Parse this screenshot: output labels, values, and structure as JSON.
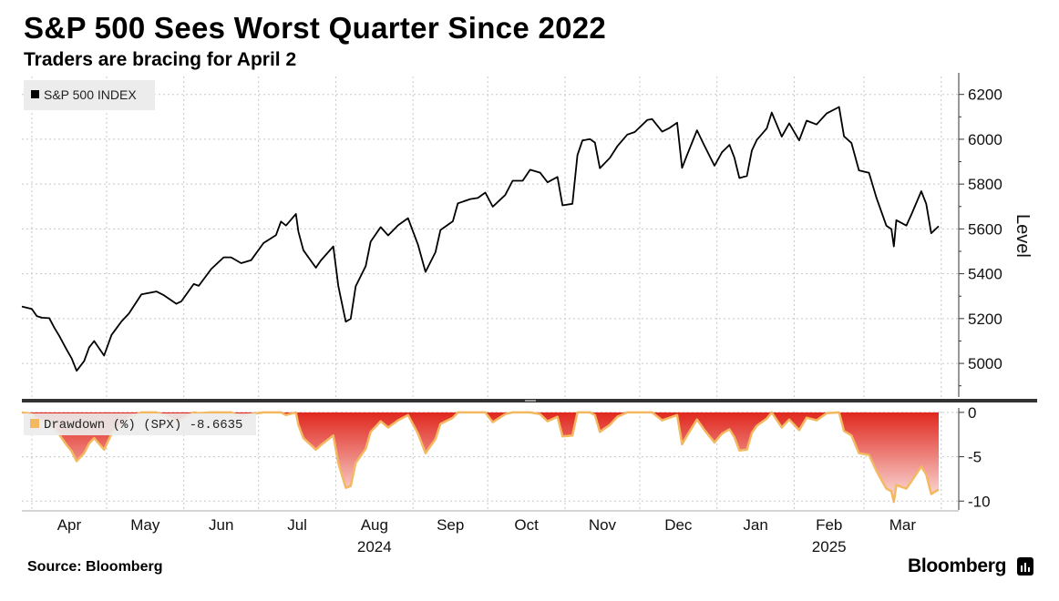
{
  "title": "S&P 500 Sees Worst Quarter Since 2022",
  "subtitle": "Traders are bracing for April 2",
  "source": "Source: Bloomberg",
  "brand": "Bloomberg",
  "colors": {
    "line": "#000000",
    "drawdown_fill_top": "#e0281e",
    "drawdown_fill_bottom": "#fbe3e1",
    "drawdown_line": "#f4b860",
    "grid": "#c8c8c8"
  },
  "chart_data": [
    {
      "type": "line",
      "legend": "S&P 500 INDEX",
      "ylabel": "Level",
      "ylim": [
        4850,
        6280
      ],
      "yticks": [
        5000,
        5200,
        5400,
        5600,
        5800,
        6000,
        6200
      ],
      "x_month_labels": [
        "Apr",
        "May",
        "Jun",
        "Jul",
        "Aug",
        "Sep",
        "Oct",
        "Nov",
        "Dec",
        "Jan",
        "Feb",
        "Mar"
      ],
      "x_year_labels": [
        {
          "month": "Aug",
          "year": "2024"
        },
        {
          "month": "Feb",
          "year": "2025"
        }
      ],
      "x_start": "2024-03-28",
      "x_end": "2025-03-31",
      "series": [
        {
          "name": "S&P 500 INDEX",
          "points": [
            [
              "2024-03-28",
              5254
            ],
            [
              "2024-04-01",
              5243
            ],
            [
              "2024-04-03",
              5211
            ],
            [
              "2024-04-05",
              5204
            ],
            [
              "2024-04-08",
              5202
            ],
            [
              "2024-04-10",
              5160
            ],
            [
              "2024-04-12",
              5123
            ],
            [
              "2024-04-15",
              5061
            ],
            [
              "2024-04-17",
              5022
            ],
            [
              "2024-04-19",
              4967
            ],
            [
              "2024-04-22",
              5010
            ],
            [
              "2024-04-24",
              5071
            ],
            [
              "2024-04-26",
              5100
            ],
            [
              "2024-04-30",
              5035
            ],
            [
              "2024-05-03",
              5127
            ],
            [
              "2024-05-07",
              5187
            ],
            [
              "2024-05-10",
              5223
            ],
            [
              "2024-05-15",
              5308
            ],
            [
              "2024-05-21",
              5321
            ],
            [
              "2024-05-24",
              5304
            ],
            [
              "2024-05-29",
              5266
            ],
            [
              "2024-05-31",
              5277
            ],
            [
              "2024-06-05",
              5354
            ],
            [
              "2024-06-07",
              5346
            ],
            [
              "2024-06-12",
              5421
            ],
            [
              "2024-06-17",
              5473
            ],
            [
              "2024-06-20",
              5473
            ],
            [
              "2024-06-24",
              5447
            ],
            [
              "2024-06-28",
              5460
            ],
            [
              "2024-07-03",
              5537
            ],
            [
              "2024-07-08",
              5572
            ],
            [
              "2024-07-10",
              5633
            ],
            [
              "2024-07-12",
              5615
            ],
            [
              "2024-07-16",
              5667
            ],
            [
              "2024-07-17",
              5588
            ],
            [
              "2024-07-19",
              5505
            ],
            [
              "2024-07-24",
              5427
            ],
            [
              "2024-07-26",
              5459
            ],
            [
              "2024-07-31",
              5522
            ],
            [
              "2024-08-02",
              5346
            ],
            [
              "2024-08-05",
              5186
            ],
            [
              "2024-08-07",
              5199
            ],
            [
              "2024-08-09",
              5344
            ],
            [
              "2024-08-13",
              5434
            ],
            [
              "2024-08-15",
              5543
            ],
            [
              "2024-08-19",
              5608
            ],
            [
              "2024-08-22",
              5571
            ],
            [
              "2024-08-26",
              5616
            ],
            [
              "2024-08-30",
              5648
            ],
            [
              "2024-09-03",
              5529
            ],
            [
              "2024-09-06",
              5408
            ],
            [
              "2024-09-10",
              5496
            ],
            [
              "2024-09-12",
              5595
            ],
            [
              "2024-09-17",
              5634
            ],
            [
              "2024-09-19",
              5714
            ],
            [
              "2024-09-24",
              5733
            ],
            [
              "2024-09-27",
              5738
            ],
            [
              "2024-09-30",
              5762
            ],
            [
              "2024-10-03",
              5699
            ],
            [
              "2024-10-08",
              5751
            ],
            [
              "2024-10-11",
              5815
            ],
            [
              "2024-10-15",
              5815
            ],
            [
              "2024-10-18",
              5864
            ],
            [
              "2024-10-22",
              5851
            ],
            [
              "2024-10-25",
              5808
            ],
            [
              "2024-10-29",
              5832
            ],
            [
              "2024-10-31",
              5705
            ],
            [
              "2024-11-04",
              5712
            ],
            [
              "2024-11-06",
              5929
            ],
            [
              "2024-11-08",
              5995
            ],
            [
              "2024-11-11",
              6001
            ],
            [
              "2024-11-13",
              5985
            ],
            [
              "2024-11-15",
              5871
            ],
            [
              "2024-11-19",
              5917
            ],
            [
              "2024-11-22",
              5969
            ],
            [
              "2024-11-26",
              6021
            ],
            [
              "2024-11-29",
              6032
            ],
            [
              "2024-12-04",
              6086
            ],
            [
              "2024-12-06",
              6090
            ],
            [
              "2024-12-10",
              6034
            ],
            [
              "2024-12-13",
              6051
            ],
            [
              "2024-12-16",
              6074
            ],
            [
              "2024-12-18",
              5872
            ],
            [
              "2024-12-20",
              5930
            ],
            [
              "2024-12-24",
              6040
            ],
            [
              "2024-12-27",
              5971
            ],
            [
              "2024-12-31",
              5882
            ],
            [
              "2025-01-03",
              5942
            ],
            [
              "2025-01-06",
              5975
            ],
            [
              "2025-01-08",
              5918
            ],
            [
              "2025-01-10",
              5827
            ],
            [
              "2025-01-13",
              5836
            ],
            [
              "2025-01-15",
              5950
            ],
            [
              "2025-01-17",
              5997
            ],
            [
              "2025-01-21",
              6049
            ],
            [
              "2025-01-23",
              6119
            ],
            [
              "2025-01-27",
              6012
            ],
            [
              "2025-01-30",
              6071
            ],
            [
              "2025-02-03",
              5995
            ],
            [
              "2025-02-06",
              6083
            ],
            [
              "2025-02-10",
              6066
            ],
            [
              "2025-02-14",
              6115
            ],
            [
              "2025-02-19",
              6144
            ],
            [
              "2025-02-21",
              6013
            ],
            [
              "2025-02-24",
              5983
            ],
            [
              "2025-02-27",
              5861
            ],
            [
              "2025-03-03",
              5850
            ],
            [
              "2025-03-06",
              5739
            ],
            [
              "2025-03-10",
              5614
            ],
            [
              "2025-03-12",
              5599
            ],
            [
              "2025-03-13",
              5522
            ],
            [
              "2025-03-14",
              5639
            ],
            [
              "2025-03-18",
              5615
            ],
            [
              "2025-03-20",
              5663
            ],
            [
              "2025-03-24",
              5768
            ],
            [
              "2025-03-26",
              5712
            ],
            [
              "2025-03-28",
              5581
            ],
            [
              "2025-03-31",
              5612
            ]
          ]
        }
      ]
    },
    {
      "type": "area",
      "legend": "Drawdown (%) (SPX) -8.6635",
      "ylim": [
        -11,
        0.5
      ],
      "yticks": [
        0,
        -5,
        -10
      ],
      "series": [
        {
          "name": "Drawdown (%) (SPX)",
          "points": [
            [
              "2024-03-28",
              0
            ],
            [
              "2024-04-01",
              -0.2
            ],
            [
              "2024-04-03",
              -0.8
            ],
            [
              "2024-04-05",
              -0.9
            ],
            [
              "2024-04-08",
              -1.0
            ],
            [
              "2024-04-10",
              -1.8
            ],
            [
              "2024-04-12",
              -2.5
            ],
            [
              "2024-04-15",
              -3.7
            ],
            [
              "2024-04-17",
              -4.4
            ],
            [
              "2024-04-19",
              -5.5
            ],
            [
              "2024-04-22",
              -4.6
            ],
            [
              "2024-04-24",
              -3.5
            ],
            [
              "2024-04-26",
              -2.9
            ],
            [
              "2024-04-30",
              -4.2
            ],
            [
              "2024-05-03",
              -2.4
            ],
            [
              "2024-05-07",
              -1.3
            ],
            [
              "2024-05-10",
              -0.6
            ],
            [
              "2024-05-15",
              0
            ],
            [
              "2024-05-21",
              0
            ],
            [
              "2024-05-24",
              -0.3
            ],
            [
              "2024-05-29",
              -1.0
            ],
            [
              "2024-05-31",
              -0.8
            ],
            [
              "2024-06-05",
              0
            ],
            [
              "2024-06-07",
              -0.1
            ],
            [
              "2024-06-12",
              0
            ],
            [
              "2024-06-17",
              0
            ],
            [
              "2024-06-20",
              0
            ],
            [
              "2024-06-24",
              -0.5
            ],
            [
              "2024-06-28",
              -0.2
            ],
            [
              "2024-07-03",
              0
            ],
            [
              "2024-07-08",
              0
            ],
            [
              "2024-07-10",
              0
            ],
            [
              "2024-07-12",
              -0.3
            ],
            [
              "2024-07-16",
              0
            ],
            [
              "2024-07-17",
              -1.4
            ],
            [
              "2024-07-19",
              -2.9
            ],
            [
              "2024-07-24",
              -4.2
            ],
            [
              "2024-07-26",
              -3.7
            ],
            [
              "2024-07-31",
              -2.6
            ],
            [
              "2024-08-02",
              -5.7
            ],
            [
              "2024-08-05",
              -8.5
            ],
            [
              "2024-08-07",
              -8.3
            ],
            [
              "2024-08-09",
              -5.7
            ],
            [
              "2024-08-13",
              -4.1
            ],
            [
              "2024-08-15",
              -2.2
            ],
            [
              "2024-08-19",
              -1.0
            ],
            [
              "2024-08-22",
              -1.7
            ],
            [
              "2024-08-26",
              -0.9
            ],
            [
              "2024-08-30",
              -0.3
            ],
            [
              "2024-09-03",
              -2.4
            ],
            [
              "2024-09-06",
              -4.6
            ],
            [
              "2024-09-10",
              -3.0
            ],
            [
              "2024-09-12",
              -1.3
            ],
            [
              "2024-09-17",
              -0.6
            ],
            [
              "2024-09-19",
              0
            ],
            [
              "2024-09-24",
              0
            ],
            [
              "2024-09-27",
              0
            ],
            [
              "2024-09-30",
              0
            ],
            [
              "2024-10-03",
              -1.1
            ],
            [
              "2024-10-08",
              -0.2
            ],
            [
              "2024-10-11",
              0
            ],
            [
              "2024-10-15",
              0
            ],
            [
              "2024-10-18",
              0
            ],
            [
              "2024-10-22",
              -0.2
            ],
            [
              "2024-10-25",
              -1.0
            ],
            [
              "2024-10-29",
              -0.5
            ],
            [
              "2024-10-31",
              -2.7
            ],
            [
              "2024-11-04",
              -2.6
            ],
            [
              "2024-11-06",
              0
            ],
            [
              "2024-11-08",
              0
            ],
            [
              "2024-11-11",
              0
            ],
            [
              "2024-11-13",
              -0.3
            ],
            [
              "2024-11-15",
              -2.2
            ],
            [
              "2024-11-19",
              -1.4
            ],
            [
              "2024-11-22",
              -0.5
            ],
            [
              "2024-11-26",
              0
            ],
            [
              "2024-11-29",
              0
            ],
            [
              "2024-12-04",
              0
            ],
            [
              "2024-12-06",
              0
            ],
            [
              "2024-12-10",
              -0.9
            ],
            [
              "2024-12-13",
              -0.6
            ],
            [
              "2024-12-16",
              -0.3
            ],
            [
              "2024-12-18",
              -3.6
            ],
            [
              "2024-12-20",
              -2.6
            ],
            [
              "2024-12-24",
              -0.8
            ],
            [
              "2024-12-27",
              -2.0
            ],
            [
              "2024-12-31",
              -3.4
            ],
            [
              "2025-01-03",
              -2.4
            ],
            [
              "2025-01-06",
              -1.9
            ],
            [
              "2025-01-08",
              -2.8
            ],
            [
              "2025-01-10",
              -4.3
            ],
            [
              "2025-01-13",
              -4.2
            ],
            [
              "2025-01-15",
              -2.3
            ],
            [
              "2025-01-17",
              -1.5
            ],
            [
              "2025-01-21",
              -0.7
            ],
            [
              "2025-01-23",
              0
            ],
            [
              "2025-01-27",
              -1.7
            ],
            [
              "2025-01-30",
              -0.8
            ],
            [
              "2025-02-03",
              -2.0
            ],
            [
              "2025-02-06",
              -0.6
            ],
            [
              "2025-02-10",
              -0.9
            ],
            [
              "2025-02-14",
              -0.1
            ],
            [
              "2025-02-19",
              0
            ],
            [
              "2025-02-21",
              -2.1
            ],
            [
              "2025-02-24",
              -2.6
            ],
            [
              "2025-02-27",
              -4.6
            ],
            [
              "2025-03-03",
              -4.8
            ],
            [
              "2025-03-06",
              -6.6
            ],
            [
              "2025-03-10",
              -8.6
            ],
            [
              "2025-03-12",
              -8.9
            ],
            [
              "2025-03-13",
              -10.1
            ],
            [
              "2025-03-14",
              -8.2
            ],
            [
              "2025-03-18",
              -8.6
            ],
            [
              "2025-03-20",
              -7.8
            ],
            [
              "2025-03-24",
              -6.1
            ],
            [
              "2025-03-26",
              -7.0
            ],
            [
              "2025-03-28",
              -9.2
            ],
            [
              "2025-03-31",
              -8.7
            ]
          ]
        }
      ]
    }
  ]
}
